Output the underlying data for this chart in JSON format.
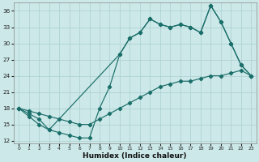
{
  "xlabel": "Humidex (Indice chaleur)",
  "bg_color": "#cce8e8",
  "grid_color": "#aacfcf",
  "line_color": "#1a6e6a",
  "xlim": [
    -0.5,
    23.5
  ],
  "ylim": [
    11.5,
    37.5
  ],
  "yticks": [
    12,
    15,
    18,
    21,
    24,
    27,
    30,
    33,
    36
  ],
  "xticks": [
    0,
    1,
    2,
    3,
    4,
    5,
    6,
    7,
    8,
    9,
    10,
    11,
    12,
    13,
    14,
    15,
    16,
    17,
    18,
    19,
    20,
    21,
    22,
    23
  ],
  "curve1_x": [
    0,
    1,
    2,
    3,
    10,
    11,
    12,
    13,
    14,
    15,
    16,
    17,
    18,
    19,
    20,
    21,
    22,
    23
  ],
  "curve1_y": [
    18,
    17,
    16,
    14,
    28,
    31,
    32,
    34.5,
    33.5,
    33,
    33.5,
    33,
    32,
    37,
    34,
    30,
    26,
    24
  ],
  "curve2_x": [
    0,
    1,
    2,
    3,
    4,
    5,
    6,
    7,
    8,
    9,
    10,
    11,
    12,
    13,
    14,
    15,
    16,
    17,
    18,
    19,
    20,
    21,
    22,
    23
  ],
  "curve2_y": [
    18,
    17.5,
    17,
    16.5,
    16,
    15.5,
    15,
    15,
    16,
    17,
    18,
    19,
    20,
    21,
    22,
    22.5,
    23,
    23,
    23.5,
    24,
    24,
    24.5,
    25,
    24
  ],
  "curve3_x": [
    0,
    1,
    2,
    3,
    4,
    5,
    6,
    7,
    8,
    9,
    10,
    11,
    12,
    13,
    14,
    15,
    16,
    17,
    18,
    19,
    20,
    21,
    22,
    23
  ],
  "curve3_y": [
    18,
    16.5,
    15,
    14,
    13.5,
    13,
    12.5,
    12.5,
    18,
    22,
    28,
    31,
    32,
    34.5,
    33.5,
    33,
    33.5,
    33,
    32,
    37,
    34,
    30,
    26,
    24
  ]
}
